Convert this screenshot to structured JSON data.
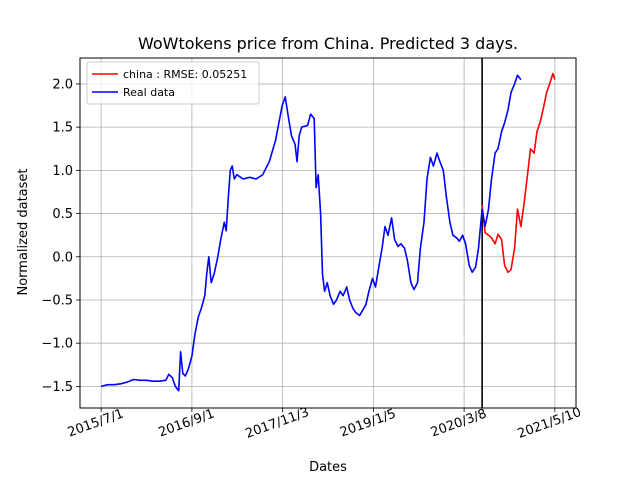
{
  "chart_data": {
    "type": "line",
    "title": "WoWtokens price from China. Predicted 3 days.",
    "xlabel": "Dates",
    "ylabel": "Normalized dataset",
    "x_ticks": [
      "2015/7/1",
      "2016/9/1",
      "2017/11/3",
      "2019/1/5",
      "2020/3/8",
      "2021/5/10"
    ],
    "y_ticks": [
      "−1.5",
      "−1.0",
      "−0.5",
      "0.0",
      "0.5",
      "1.0",
      "1.5",
      "2.0"
    ],
    "ylim": [
      -1.75,
      2.3
    ],
    "grid": true,
    "legend_position": "top-left",
    "vertical_marker_date": "2020/6/1",
    "series": [
      {
        "name": "china : RMSE: 0.05251",
        "color": "#ff0000",
        "points": [
          [
            "2020/6/1",
            0.6
          ],
          [
            "2020/6/15",
            0.28
          ],
          [
            "2020/7/1",
            0.25
          ],
          [
            "2020/7/15",
            0.22
          ],
          [
            "2020/8/1",
            0.15
          ],
          [
            "2020/8/15",
            0.26
          ],
          [
            "2020/9/1",
            0.2
          ],
          [
            "2020/9/15",
            -0.1
          ],
          [
            "2020/10/1",
            -0.18
          ],
          [
            "2020/10/15",
            -0.15
          ],
          [
            "2020/11/1",
            0.1
          ],
          [
            "2020/11/15",
            0.55
          ],
          [
            "2020/12/1",
            0.35
          ],
          [
            "2020/12/15",
            0.6
          ],
          [
            "2021/1/1",
            0.95
          ],
          [
            "2021/1/15",
            1.25
          ],
          [
            "2021/2/1",
            1.2
          ],
          [
            "2021/2/15",
            1.45
          ],
          [
            "2021/3/1",
            1.55
          ],
          [
            "2021/3/15",
            1.7
          ],
          [
            "2021/4/1",
            1.9
          ],
          [
            "2021/4/15",
            2.0
          ],
          [
            "2021/5/1",
            2.12
          ],
          [
            "2021/5/10",
            2.05
          ]
        ]
      },
      {
        "name": "Real data",
        "color": "#0000ff",
        "points": [
          [
            "2015/7/1",
            -1.5
          ],
          [
            "2015/8/1",
            -1.48
          ],
          [
            "2015/9/1",
            -1.48
          ],
          [
            "2015/10/1",
            -1.47
          ],
          [
            "2015/11/1",
            -1.45
          ],
          [
            "2015/12/1",
            -1.42
          ],
          [
            "2016/1/1",
            -1.43
          ],
          [
            "2016/2/1",
            -1.43
          ],
          [
            "2016/3/1",
            -1.44
          ],
          [
            "2016/4/1",
            -1.44
          ],
          [
            "2016/5/1",
            -1.43
          ],
          [
            "2016/5/15",
            -1.36
          ],
          [
            "2016/6/1",
            -1.4
          ],
          [
            "2016/6/15",
            -1.5
          ],
          [
            "2016/7/1",
            -1.55
          ],
          [
            "2016/7/10",
            -1.1
          ],
          [
            "2016/7/20",
            -1.35
          ],
          [
            "2016/8/1",
            -1.38
          ],
          [
            "2016/8/15",
            -1.3
          ],
          [
            "2016/9/1",
            -1.15
          ],
          [
            "2016/9/15",
            -0.9
          ],
          [
            "2016/10/1",
            -0.7
          ],
          [
            "2016/10/15",
            -0.6
          ],
          [
            "2016/11/1",
            -0.45
          ],
          [
            "2016/11/10",
            -0.2
          ],
          [
            "2016/11/20",
            0.0
          ],
          [
            "2016/12/1",
            -0.3
          ],
          [
            "2016/12/15",
            -0.2
          ],
          [
            "2017/1/1",
            0.0
          ],
          [
            "2017/1/15",
            0.2
          ],
          [
            "2017/2/1",
            0.4
          ],
          [
            "2017/2/10",
            0.3
          ],
          [
            "2017/2/20",
            0.7
          ],
          [
            "2017/3/1",
            1.0
          ],
          [
            "2017/3/10",
            1.05
          ],
          [
            "2017/3/20",
            0.9
          ],
          [
            "2017/4/1",
            0.95
          ],
          [
            "2017/5/1",
            0.9
          ],
          [
            "2017/6/1",
            0.92
          ],
          [
            "2017/7/1",
            0.9
          ],
          [
            "2017/8/1",
            0.95
          ],
          [
            "2017/9/1",
            1.1
          ],
          [
            "2017/10/1",
            1.35
          ],
          [
            "2017/11/1",
            1.75
          ],
          [
            "2017/11/15",
            1.85
          ],
          [
            "2017/12/1",
            1.6
          ],
          [
            "2017/12/15",
            1.4
          ],
          [
            "2018/1/1",
            1.3
          ],
          [
            "2018/1/10",
            1.1
          ],
          [
            "2018/1/20",
            1.4
          ],
          [
            "2018/2/1",
            1.5
          ],
          [
            "2018/3/1",
            1.52
          ],
          [
            "2018/3/15",
            1.65
          ],
          [
            "2018/4/1",
            1.6
          ],
          [
            "2018/4/10",
            0.8
          ],
          [
            "2018/4/20",
            0.95
          ],
          [
            "2018/5/1",
            0.5
          ],
          [
            "2018/5/10",
            -0.2
          ],
          [
            "2018/5/20",
            -0.4
          ],
          [
            "2018/6/1",
            -0.3
          ],
          [
            "2018/6/15",
            -0.45
          ],
          [
            "2018/7/1",
            -0.55
          ],
          [
            "2018/7/15",
            -0.5
          ],
          [
            "2018/8/1",
            -0.4
          ],
          [
            "2018/8/15",
            -0.45
          ],
          [
            "2018/9/1",
            -0.35
          ],
          [
            "2018/9/15",
            -0.5
          ],
          [
            "2018/10/1",
            -0.6
          ],
          [
            "2018/10/15",
            -0.65
          ],
          [
            "2018/11/1",
            -0.68
          ],
          [
            "2018/11/15",
            -0.62
          ],
          [
            "2018/12/1",
            -0.55
          ],
          [
            "2018/12/15",
            -0.4
          ],
          [
            "2019/1/1",
            -0.25
          ],
          [
            "2019/1/15",
            -0.35
          ],
          [
            "2019/2/1",
            -0.1
          ],
          [
            "2019/2/15",
            0.1
          ],
          [
            "2019/3/1",
            0.35
          ],
          [
            "2019/3/15",
            0.25
          ],
          [
            "2019/4/1",
            0.45
          ],
          [
            "2019/4/15",
            0.2
          ],
          [
            "2019/5/1",
            0.12
          ],
          [
            "2019/5/15",
            0.15
          ],
          [
            "2019/6/1",
            0.1
          ],
          [
            "2019/6/15",
            -0.05
          ],
          [
            "2019/7/1",
            -0.3
          ],
          [
            "2019/7/15",
            -0.38
          ],
          [
            "2019/8/1",
            -0.3
          ],
          [
            "2019/8/15",
            0.1
          ],
          [
            "2019/9/1",
            0.4
          ],
          [
            "2019/9/15",
            0.9
          ],
          [
            "2019/10/1",
            1.15
          ],
          [
            "2019/10/15",
            1.05
          ],
          [
            "2019/11/1",
            1.2
          ],
          [
            "2019/11/15",
            1.1
          ],
          [
            "2019/12/1",
            1.0
          ],
          [
            "2019/12/15",
            0.7
          ],
          [
            "2020/1/1",
            0.4
          ],
          [
            "2020/1/15",
            0.25
          ],
          [
            "2020/2/1",
            0.22
          ],
          [
            "2020/2/15",
            0.18
          ],
          [
            "2020/3/1",
            0.25
          ],
          [
            "2020/3/15",
            0.15
          ],
          [
            "2020/4/1",
            -0.1
          ],
          [
            "2020/4/15",
            -0.18
          ],
          [
            "2020/5/1",
            -0.12
          ],
          [
            "2020/5/15",
            0.1
          ],
          [
            "2020/6/1",
            0.55
          ],
          [
            "2020/6/15",
            0.35
          ],
          [
            "2020/7/1",
            0.55
          ],
          [
            "2020/7/15",
            0.9
          ],
          [
            "2020/8/1",
            1.2
          ],
          [
            "2020/8/15",
            1.25
          ],
          [
            "2020/9/1",
            1.45
          ],
          [
            "2020/9/15",
            1.55
          ],
          [
            "2020/10/1",
            1.7
          ],
          [
            "2020/10/15",
            1.9
          ],
          [
            "2020/11/1",
            2.0
          ],
          [
            "2020/11/15",
            2.1
          ],
          [
            "2020/12/1",
            2.05
          ]
        ]
      }
    ]
  }
}
